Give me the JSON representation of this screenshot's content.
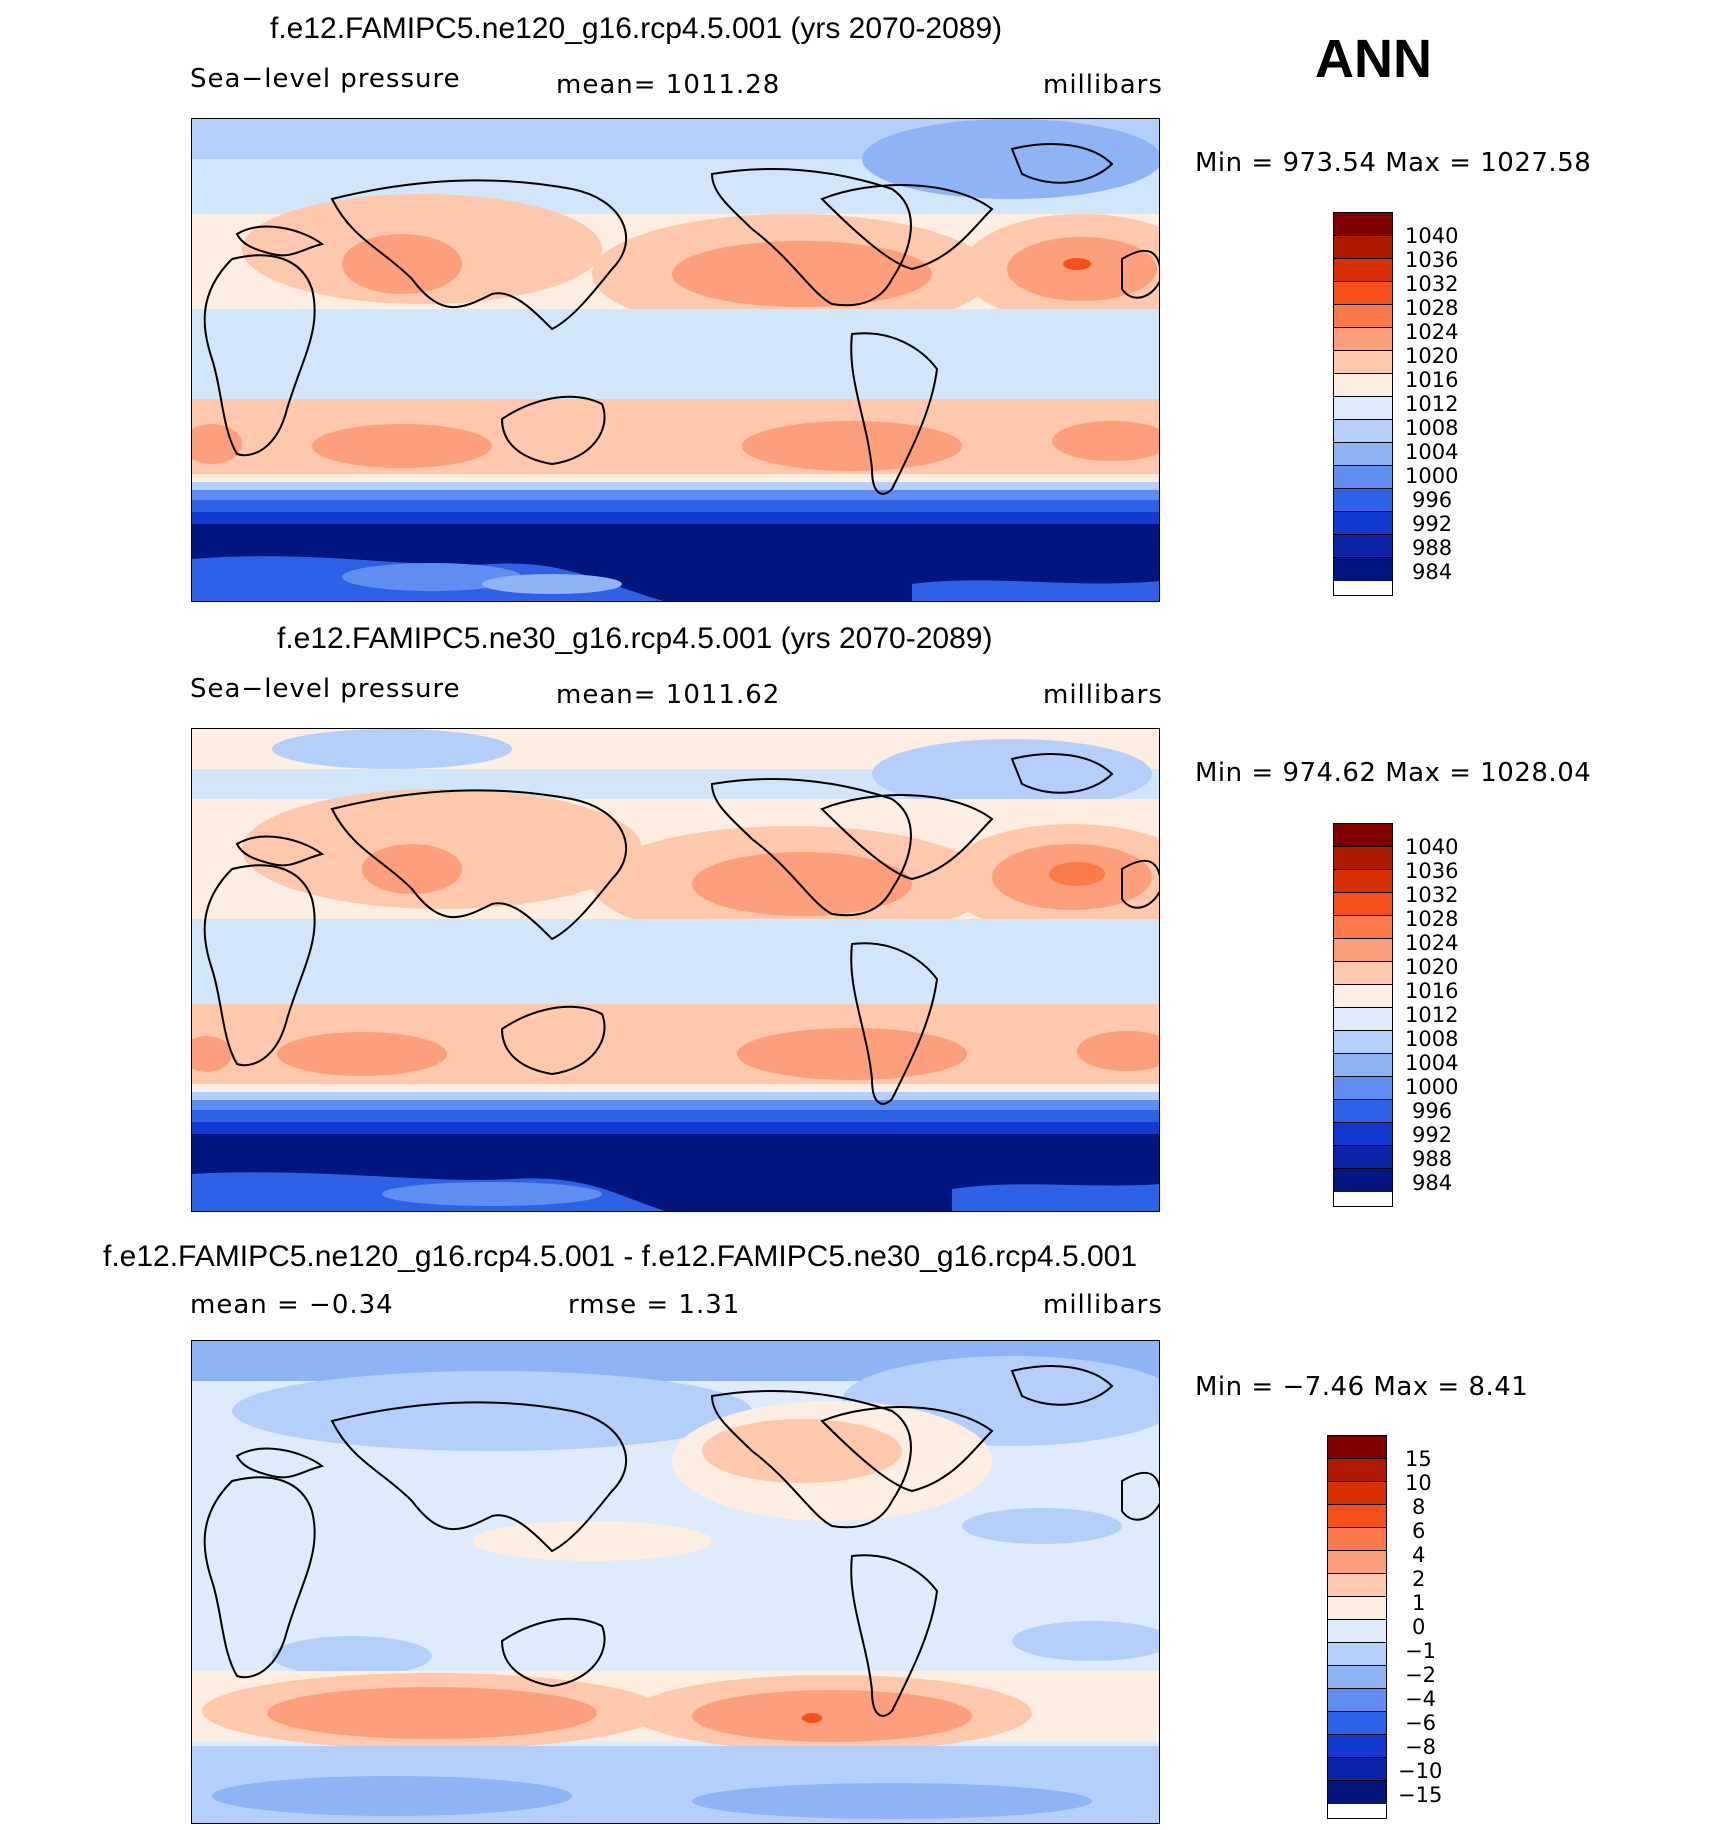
{
  "season": "ANN",
  "units": "millibars",
  "panels": [
    {
      "title": "f.e12.FAMIPC5.ne120_g16.rcp4.5.001 (yrs 2070-2089)",
      "left_label": "Sea−level pressure",
      "center_label": "mean=  1011.28",
      "right_label": "millibars",
      "minmax": "Min  =  973.54  Max  =  1027.58",
      "colorbar_levels": [
        "1040",
        "1036",
        "1032",
        "1028",
        "1024",
        "1020",
        "1016",
        "1012",
        "1008",
        "1004",
        "1000",
        "996",
        "992",
        "988",
        "984"
      ],
      "colors": {
        "high": "#8b0000",
        "mid_high": "#fb7a4a",
        "warm": "#fcbd9f",
        "neutral_warm": "#fde8d8",
        "neutral_cool": "#d2e6fb",
        "cool": "#7aa6f4",
        "deep": "#0b26b8",
        "deepest": "#00137c"
      }
    },
    {
      "title": "f.e12.FAMIPC5.ne30_g16.rcp4.5.001 (yrs 2070-2089)",
      "left_label": "Sea−level pressure",
      "center_label": "mean=  1011.62",
      "right_label": "millibars",
      "minmax": "Min  =  974.62  Max  =  1028.04",
      "colorbar_levels": [
        "1040",
        "1036",
        "1032",
        "1028",
        "1024",
        "1020",
        "1016",
        "1012",
        "1008",
        "1004",
        "1000",
        "996",
        "992",
        "988",
        "984"
      ]
    },
    {
      "title": "f.e12.FAMIPC5.ne120_g16.rcp4.5.001 - f.e12.FAMIPC5.ne30_g16.rcp4.5.001",
      "left_label": "mean  =     −0.34",
      "center_label": "rmse  =     1.31",
      "right_label": "millibars",
      "minmax": "Min  =    −7.46  Max  =     8.41",
      "colorbar_levels": [
        "15",
        "10",
        "8",
        "6",
        "4",
        "2",
        "1",
        "0",
        "−1",
        "−2",
        "−4",
        "−6",
        "−8",
        "−10",
        "−15"
      ]
    }
  ],
  "colorbar_colors": [
    "#800000",
    "#b01a00",
    "#d83000",
    "#f5501a",
    "#fb7a4a",
    "#fc9f7a",
    "#fdc8ab",
    "#feeee2",
    "#ddebfc",
    "#b4d0fa",
    "#8fb4f6",
    "#5f8ef0",
    "#2e62e6",
    "#113ad0",
    "#0a22a6",
    "#02147e"
  ]
}
